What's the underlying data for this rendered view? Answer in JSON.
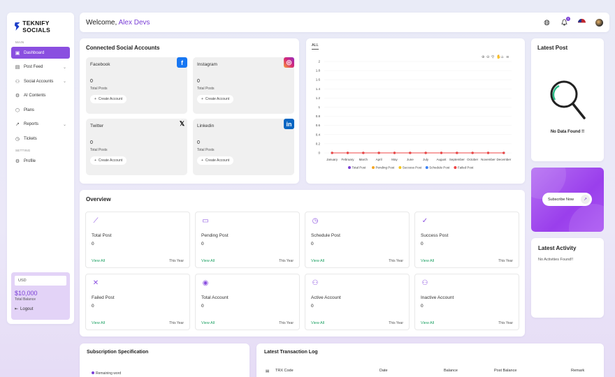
{
  "brand": {
    "name": "TEKNIFY SOCIALS"
  },
  "sidebar": {
    "section_main": "MAIN",
    "section_setting": "SETTING",
    "items": [
      {
        "label": "Dashboard",
        "icon": "dashboard-icon",
        "active": true
      },
      {
        "label": "Post Feed",
        "icon": "post-feed-icon",
        "chevron": true
      },
      {
        "label": "Social Accounts",
        "icon": "users-icon",
        "chevron": true
      },
      {
        "label": "AI Contents",
        "icon": "ai-icon"
      },
      {
        "label": "Plans",
        "icon": "box-icon"
      },
      {
        "label": "Reports",
        "icon": "chart-icon",
        "chevron": true
      },
      {
        "label": "Tickets",
        "icon": "ticket-icon"
      }
    ],
    "profile_label": "Profile",
    "currency": "USD",
    "balance": "$10,000",
    "balance_label": "Total Balance",
    "logout_label": "Logout"
  },
  "header": {
    "welcome": "Welcome,",
    "user_name": "Alex Devs",
    "notification_count": "0"
  },
  "connected": {
    "title": "Connected Social Accounts",
    "total_posts_label": "Total Posts",
    "create_label": "Create Account",
    "accounts": [
      {
        "name": "Facebook",
        "count": "0",
        "color": "#1877f2",
        "glyph": "f"
      },
      {
        "name": "Instagram",
        "count": "0",
        "color": "#e1306c",
        "glyph": "◎"
      },
      {
        "name": "Twitter",
        "count": "0",
        "color": "#000000",
        "glyph": "𝕏"
      },
      {
        "name": "Linkedin",
        "count": "0",
        "color": "#0a66c2",
        "glyph": "in"
      }
    ]
  },
  "chart": {
    "tab": "ALL"
  },
  "chart_data": {
    "type": "line",
    "categories": [
      "January",
      "February",
      "March",
      "April",
      "May",
      "June",
      "July",
      "August",
      "September",
      "October",
      "November",
      "December"
    ],
    "ylim": [
      0,
      2
    ],
    "yticks": [
      "0",
      "0.2",
      "0.4",
      "0.6",
      "0.8",
      "1",
      "1.2",
      "1.4",
      "1.6",
      "1.8",
      "2"
    ],
    "series": [
      {
        "name": "Total Post",
        "color": "#7a3fd6",
        "values": [
          0,
          0,
          0,
          0,
          0,
          0,
          0,
          0,
          0,
          0,
          0,
          0
        ]
      },
      {
        "name": "Pending Post",
        "color": "#f5a623",
        "values": [
          0,
          0,
          0,
          0,
          0,
          0,
          0,
          0,
          0,
          0,
          0,
          0
        ]
      },
      {
        "name": "Success Post",
        "color": "#f5c518",
        "values": [
          0,
          0,
          0,
          0,
          0,
          0,
          0,
          0,
          0,
          0,
          0,
          0
        ]
      },
      {
        "name": "Schedule Post",
        "color": "#3b82f6",
        "values": [
          0,
          0,
          0,
          0,
          0,
          0,
          0,
          0,
          0,
          0,
          0,
          0
        ]
      },
      {
        "name": "Failed Post",
        "color": "#ef4444",
        "values": [
          0,
          0,
          0,
          0,
          0,
          0,
          0,
          0,
          0,
          0,
          0,
          0
        ]
      }
    ],
    "legend": "bottom"
  },
  "latest_post": {
    "title": "Latest Post",
    "empty": "No Data Found !!"
  },
  "subscribe": {
    "label": "Subscribe Now"
  },
  "activity": {
    "title": "Latest Activity",
    "empty": "No Activities Found!!"
  },
  "overview": {
    "title": "Overview",
    "view_all": "View All",
    "period": "This Year",
    "cards": [
      {
        "label": "Total Post",
        "value": "0",
        "icon": "chart-line-icon"
      },
      {
        "label": "Pending Post",
        "value": "0",
        "icon": "calendar-icon"
      },
      {
        "label": "Schedule Post",
        "value": "0",
        "icon": "clock-icon"
      },
      {
        "label": "Success Post",
        "value": "0",
        "icon": "check-circle-icon"
      },
      {
        "label": "Failed Post",
        "value": "0",
        "icon": "x-circle-icon"
      },
      {
        "label": "Total Account",
        "value": "0",
        "icon": "user-circle-icon"
      },
      {
        "label": "Active Account",
        "value": "0",
        "icon": "user-check-icon"
      },
      {
        "label": "Inactive Account",
        "value": "0",
        "icon": "user-x-icon"
      }
    ]
  },
  "subscription": {
    "title": "Subscription Specification",
    "legend": "Remaining word"
  },
  "transactions": {
    "title": "Latest Transaction Log",
    "columns": [
      "TRX Code",
      "Date",
      "Balance",
      "Post Balance",
      "Remark"
    ]
  }
}
